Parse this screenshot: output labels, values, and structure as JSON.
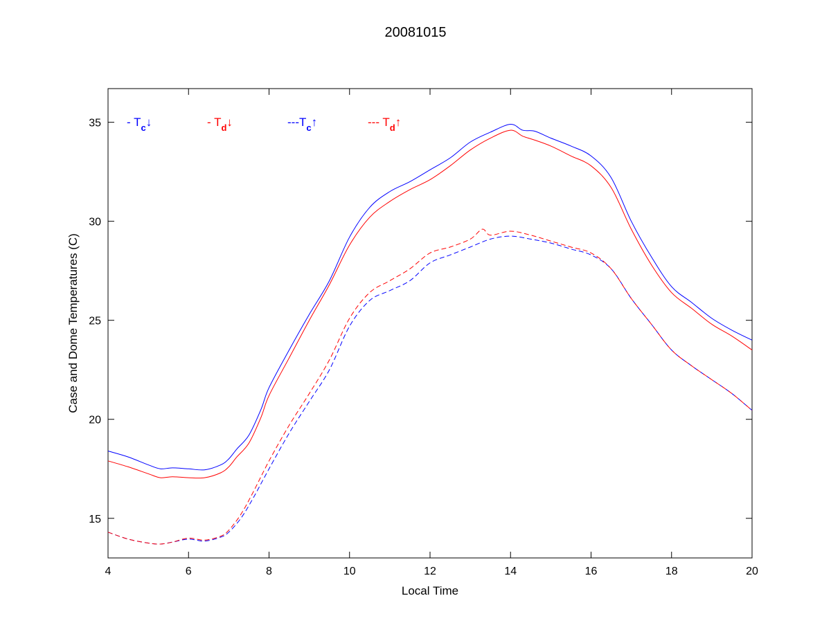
{
  "chart_data": {
    "type": "line",
    "title": "20081015",
    "xlabel": "Local Time",
    "ylabel": "Case and Dome Temperatures (C)",
    "xlim": [
      4,
      20
    ],
    "ylim": [
      13,
      36.7
    ],
    "xticks": [
      4,
      6,
      8,
      10,
      12,
      14,
      16,
      18,
      20
    ],
    "yticks": [
      15,
      20,
      25,
      30,
      35
    ],
    "grid": false,
    "legend_position": "top-left",
    "series": [
      {
        "name": "- T_c↓",
        "legend": {
          "prefix": "- T",
          "sub": "c",
          "arrow": "↓"
        },
        "color": "#0000ff",
        "style": "solid",
        "x": [
          4.0,
          4.5,
          5.0,
          5.3,
          5.6,
          6.0,
          6.4,
          6.8,
          7.0,
          7.2,
          7.5,
          7.8,
          8.0,
          8.5,
          9.0,
          9.5,
          10.0,
          10.5,
          11.0,
          11.5,
          12.0,
          12.5,
          13.0,
          13.5,
          14.0,
          14.3,
          14.6,
          15.0,
          15.5,
          16.0,
          16.5,
          17.0,
          17.5,
          18.0,
          18.5,
          19.0,
          19.5,
          20.0
        ],
        "y": [
          18.4,
          18.1,
          17.7,
          17.5,
          17.55,
          17.5,
          17.45,
          17.7,
          18.0,
          18.5,
          19.2,
          20.5,
          21.6,
          23.5,
          25.3,
          27.0,
          29.2,
          30.7,
          31.5,
          32.0,
          32.6,
          33.2,
          34.0,
          34.5,
          34.9,
          34.6,
          34.55,
          34.2,
          33.8,
          33.3,
          32.2,
          30.0,
          28.2,
          26.7,
          25.9,
          25.1,
          24.5,
          24.0
        ]
      },
      {
        "name": "- T_d↓",
        "legend": {
          "prefix": "- T",
          "sub": "d",
          "arrow": "↓"
        },
        "color": "#ff0000",
        "style": "solid",
        "x": [
          4.0,
          4.5,
          5.0,
          5.3,
          5.6,
          6.0,
          6.4,
          6.8,
          7.0,
          7.2,
          7.5,
          7.8,
          8.0,
          8.5,
          9.0,
          9.5,
          10.0,
          10.5,
          11.0,
          11.5,
          12.0,
          12.5,
          13.0,
          13.5,
          14.0,
          14.3,
          14.6,
          15.0,
          15.5,
          16.0,
          16.5,
          17.0,
          17.5,
          18.0,
          18.5,
          19.0,
          19.5,
          20.0
        ],
        "y": [
          17.9,
          17.6,
          17.25,
          17.05,
          17.1,
          17.05,
          17.05,
          17.3,
          17.6,
          18.1,
          18.8,
          20.1,
          21.2,
          23.1,
          25.0,
          26.8,
          28.8,
          30.2,
          31.0,
          31.6,
          32.1,
          32.8,
          33.6,
          34.2,
          34.6,
          34.3,
          34.1,
          33.8,
          33.3,
          32.8,
          31.7,
          29.6,
          27.8,
          26.4,
          25.6,
          24.8,
          24.2,
          23.5
        ]
      },
      {
        "name": "---T_c↑",
        "legend": {
          "prefix": "---T",
          "sub": "c",
          "arrow": "↑"
        },
        "color": "#0000ff",
        "style": "dashed",
        "x": [
          4.0,
          4.5,
          5.0,
          5.3,
          5.6,
          6.0,
          6.4,
          6.8,
          7.0,
          7.3,
          7.6,
          8.0,
          8.5,
          9.0,
          9.5,
          10.0,
          10.5,
          11.0,
          11.5,
          12.0,
          12.5,
          13.0,
          13.5,
          14.0,
          14.5,
          15.0,
          15.5,
          16.0,
          16.5,
          17.0,
          17.5,
          18.0,
          18.5,
          19.0,
          19.5,
          20.0
        ],
        "y": [
          14.3,
          13.95,
          13.75,
          13.7,
          13.8,
          13.95,
          13.85,
          14.05,
          14.3,
          15.0,
          16.0,
          17.5,
          19.3,
          20.9,
          22.5,
          24.7,
          26.0,
          26.5,
          27.0,
          27.9,
          28.3,
          28.7,
          29.1,
          29.25,
          29.1,
          28.9,
          28.6,
          28.3,
          27.6,
          26.1,
          24.8,
          23.5,
          22.7,
          22.0,
          21.3,
          20.45
        ]
      },
      {
        "name": "--- T_d↑",
        "legend": {
          "prefix": "--- T",
          "sub": "d",
          "arrow": "↑"
        },
        "color": "#ff0000",
        "style": "dashed",
        "x": [
          4.0,
          4.5,
          5.0,
          5.3,
          5.6,
          6.0,
          6.4,
          6.8,
          7.0,
          7.3,
          7.6,
          8.0,
          8.5,
          9.0,
          9.5,
          10.0,
          10.5,
          11.0,
          11.5,
          12.0,
          12.5,
          13.0,
          13.3,
          13.5,
          14.0,
          14.5,
          15.0,
          15.5,
          16.0,
          16.5,
          17.0,
          17.5,
          18.0,
          18.5,
          19.0,
          19.5,
          20.0
        ],
        "y": [
          14.3,
          13.95,
          13.75,
          13.7,
          13.8,
          14.0,
          13.9,
          14.1,
          14.4,
          15.2,
          16.3,
          17.9,
          19.7,
          21.3,
          23.0,
          25.1,
          26.4,
          27.0,
          27.6,
          28.4,
          28.7,
          29.1,
          29.6,
          29.3,
          29.5,
          29.3,
          29.0,
          28.7,
          28.4,
          27.6,
          26.1,
          24.8,
          23.5,
          22.7,
          22.0,
          21.3,
          20.45
        ]
      }
    ]
  }
}
